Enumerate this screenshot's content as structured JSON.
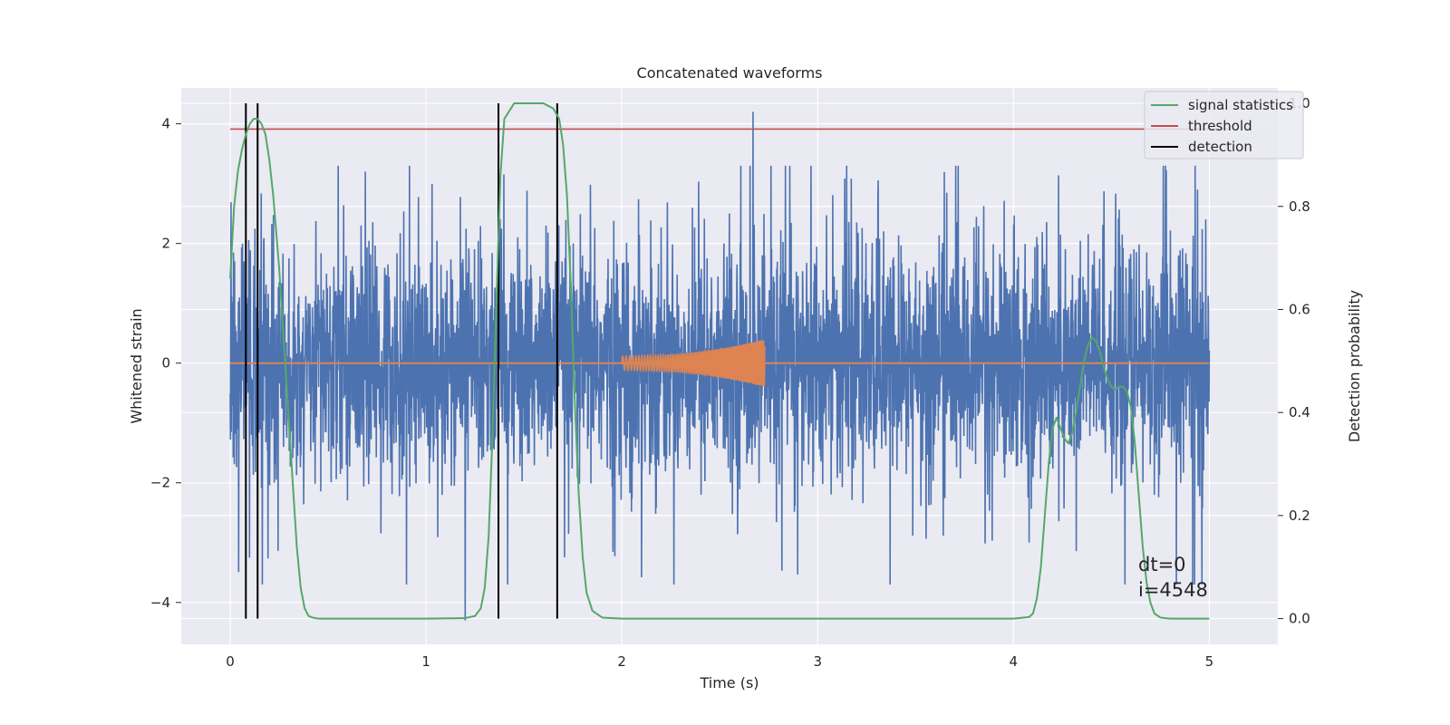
{
  "chart_data": {
    "type": "line",
    "title": "Concatenated waveforms",
    "xlabel": "Time (s)",
    "ylabel": "Whitened strain",
    "y2label": "Detection probability",
    "xlim": [
      -0.25,
      5.35
    ],
    "ylim": [
      -4.7,
      4.6
    ],
    "y2lim": [
      -0.05,
      1.03
    ],
    "xticks": [
      0,
      1,
      2,
      3,
      4,
      5
    ],
    "yticks": [
      -4,
      -2,
      0,
      2,
      4
    ],
    "y2ticks": [
      0.0,
      0.2,
      0.4,
      0.6,
      0.8,
      1.0
    ],
    "xtick_labels": [
      "0",
      "1",
      "2",
      "3",
      "4",
      "5"
    ],
    "ytick_labels": [
      "−4",
      "−2",
      "0",
      "2",
      "4"
    ],
    "y2tick_labels": [
      "0.0",
      "0.2",
      "0.4",
      "0.6",
      "0.8",
      "1.0"
    ],
    "grid": true,
    "legend_position": "top-right",
    "colors": {
      "background": "#eaeaf2",
      "grid": "#ffffff",
      "strain": "#4c72b0",
      "waveform": "#dd8452",
      "signal": "#55a868",
      "threshold": "#c44e52",
      "detection": "#000000"
    },
    "series": [
      {
        "name": "",
        "role": "whitened-strain",
        "axis": "left",
        "x_range": [
          0,
          5
        ],
        "amplitude_envelope": {
          "core": 1.0,
          "typical_peak": 2.6,
          "max": 4.2,
          "min": -4.3
        },
        "notable_spikes": [
          {
            "x": 2.67,
            "y": 4.2
          },
          {
            "x": 1.2,
            "y": -4.3
          },
          {
            "x": 3.37,
            "y": -3.7
          },
          {
            "x": 4.08,
            "y": -3.0
          },
          {
            "x": 0.69,
            "y": 3.2
          },
          {
            "x": 4.94,
            "y": 2.9
          }
        ]
      },
      {
        "name": "",
        "role": "injected-waveform",
        "axis": "left",
        "baseline": 0,
        "chirp": {
          "start": 2.0,
          "end": 2.73,
          "start_amplitude": 0.12,
          "end_amplitude": 0.4
        }
      },
      {
        "name": "signal statistics",
        "axis": "right",
        "x": [
          0,
          0.02,
          0.04,
          0.06,
          0.08,
          0.1,
          0.12,
          0.14,
          0.16,
          0.18,
          0.2,
          0.22,
          0.25,
          0.28,
          0.3,
          0.32,
          0.34,
          0.36,
          0.38,
          0.4,
          0.42,
          0.45,
          0.5,
          1.0,
          1.2,
          1.25,
          1.28,
          1.3,
          1.32,
          1.34,
          1.36,
          1.38,
          1.4,
          1.45,
          1.5,
          1.55,
          1.6,
          1.65,
          1.68,
          1.7,
          1.72,
          1.74,
          1.76,
          1.78,
          1.8,
          1.82,
          1.85,
          1.9,
          2.0,
          3.0,
          4.0,
          4.08,
          4.1,
          4.12,
          4.14,
          4.16,
          4.18,
          4.2,
          4.22,
          4.24,
          4.26,
          4.28,
          4.3,
          4.32,
          4.34,
          4.36,
          4.38,
          4.4,
          4.42,
          4.44,
          4.46,
          4.48,
          4.5,
          4.52,
          4.54,
          4.56,
          4.58,
          4.6,
          4.62,
          4.64,
          4.66,
          4.68,
          4.7,
          4.72,
          4.75,
          4.8,
          4.9,
          5.0
        ],
        "y": [
          0.66,
          0.8,
          0.87,
          0.91,
          0.94,
          0.96,
          0.97,
          0.97,
          0.96,
          0.94,
          0.89,
          0.82,
          0.68,
          0.5,
          0.38,
          0.26,
          0.14,
          0.06,
          0.02,
          0.005,
          0.002,
          0.0,
          0.0,
          0.0,
          0.001,
          0.005,
          0.02,
          0.06,
          0.16,
          0.36,
          0.62,
          0.86,
          0.97,
          1.0,
          1.0,
          1.0,
          1.0,
          0.99,
          0.97,
          0.92,
          0.82,
          0.64,
          0.42,
          0.24,
          0.12,
          0.05,
          0.015,
          0.002,
          0.0,
          0.0,
          0.0,
          0.003,
          0.01,
          0.04,
          0.1,
          0.2,
          0.3,
          0.37,
          0.39,
          0.37,
          0.35,
          0.34,
          0.36,
          0.4,
          0.45,
          0.5,
          0.53,
          0.545,
          0.54,
          0.52,
          0.49,
          0.465,
          0.45,
          0.445,
          0.45,
          0.45,
          0.44,
          0.41,
          0.34,
          0.24,
          0.14,
          0.07,
          0.03,
          0.01,
          0.002,
          0.0,
          0.0,
          0.0
        ]
      },
      {
        "name": "threshold",
        "axis": "right",
        "x": [
          0,
          5.1
        ],
        "y": [
          0.95,
          0.95
        ]
      },
      {
        "name": "detection",
        "axis": "right",
        "vlines": [
          0.08,
          0.14,
          1.37,
          1.67
        ],
        "ymin": 0.0,
        "ymax": 1.0
      }
    ],
    "annotations": [
      "dt=0",
      "i=4548"
    ]
  }
}
